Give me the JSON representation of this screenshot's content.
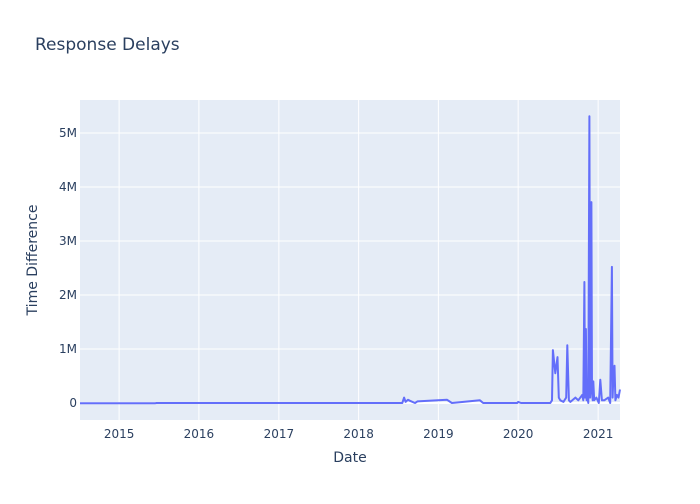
{
  "chart_data": {
    "type": "line",
    "title": "Response Delays",
    "xlabel": "Date",
    "ylabel": "Time Difference",
    "xlim": [
      "2014-07-06",
      "2021-04-11"
    ],
    "ylim": [
      -315000,
      5611000
    ],
    "grid": true,
    "x_ticks": [
      {
        "value": "2015-01-01",
        "label": "2015"
      },
      {
        "value": "2016-01-01",
        "label": "2016"
      },
      {
        "value": "2017-01-01",
        "label": "2017"
      },
      {
        "value": "2018-01-01",
        "label": "2018"
      },
      {
        "value": "2019-01-01",
        "label": "2019"
      },
      {
        "value": "2020-01-01",
        "label": "2020"
      },
      {
        "value": "2021-01-01",
        "label": "2021"
      }
    ],
    "y_ticks": [
      {
        "value": 0,
        "label": "0"
      },
      {
        "value": 1000000,
        "label": "1M"
      },
      {
        "value": 2000000,
        "label": "2M"
      },
      {
        "value": 3000000,
        "label": "3M"
      },
      {
        "value": 4000000,
        "label": "4M"
      },
      {
        "value": 5000000,
        "label": "5M"
      }
    ],
    "colors": {
      "line": "#636efa",
      "plot_bg": "#e5ecf6",
      "grid": "#ffffff"
    },
    "series": [
      {
        "x": [
          "2014-07-06",
          "2015-06-14",
          "2015-06-20",
          "2018-07-20",
          "2018-07-28",
          "2018-08-04",
          "2018-08-15",
          "2018-08-24",
          "2018-09-16",
          "2018-09-27",
          "2019-02-10",
          "2019-03-04",
          "2019-07-10",
          "2019-07-25",
          "2019-12-27",
          "2020-01-01",
          "2020-01-14",
          "2020-05-27",
          "2020-06-04",
          "2020-06-08",
          "2020-06-19",
          "2020-06-29",
          "2020-07-05",
          "2020-07-12",
          "2020-07-26",
          "2020-08-08",
          "2020-08-13",
          "2020-08-20",
          "2020-08-27",
          "2020-09-19",
          "2020-10-02",
          "2020-10-20",
          "2020-10-25",
          "2020-10-30",
          "2020-11-02",
          "2020-11-06",
          "2020-11-09",
          "2020-11-13",
          "2020-11-17",
          "2020-11-22",
          "2020-11-25",
          "2020-12-01",
          "2020-12-04",
          "2020-12-07",
          "2020-12-10",
          "2020-12-14",
          "2020-12-24",
          "2021-01-04",
          "2021-01-11",
          "2021-01-18",
          "2021-01-29",
          "2021-02-16",
          "2021-02-25",
          "2021-03-05",
          "2021-03-08",
          "2021-03-10",
          "2021-03-17",
          "2021-03-21",
          "2021-03-28",
          "2021-04-04",
          "2021-04-11"
        ],
        "y": [
          -5000,
          -5000,
          0,
          0,
          100000,
          20000,
          60000,
          40000,
          0,
          30000,
          60000,
          0,
          50000,
          0,
          0,
          20000,
          0,
          0,
          50000,
          980000,
          550000,
          850000,
          100000,
          50000,
          20000,
          100000,
          1070000,
          50000,
          20000,
          100000,
          50000,
          150000,
          50000,
          2240000,
          100000,
          1370000,
          50000,
          100000,
          0,
          5310000,
          100000,
          3720000,
          200000,
          50000,
          400000,
          50000,
          100000,
          0,
          430000,
          50000,
          50000,
          100000,
          0,
          2520000,
          100000,
          300000,
          690000,
          50000,
          150000,
          100000,
          250000
        ]
      }
    ]
  }
}
